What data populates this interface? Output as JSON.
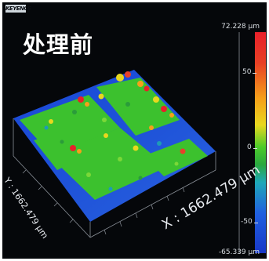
{
  "title": "处理前",
  "logo_text": "KEYENCE",
  "scale": {
    "max_label": "72.228 μm",
    "min_label": "-65.339 μm",
    "ticks": [
      "50",
      "0",
      "-50"
    ]
  },
  "axes": {
    "x_label": "X : 1662.479 μm",
    "y_label": "Y : 1662.479 μm"
  },
  "colors": {
    "high": "#e8202a",
    "upper_mid": "#f5a01a",
    "mid": "#e8d81e",
    "low_mid": "#4ccb2a",
    "low": "#1838c8"
  }
}
